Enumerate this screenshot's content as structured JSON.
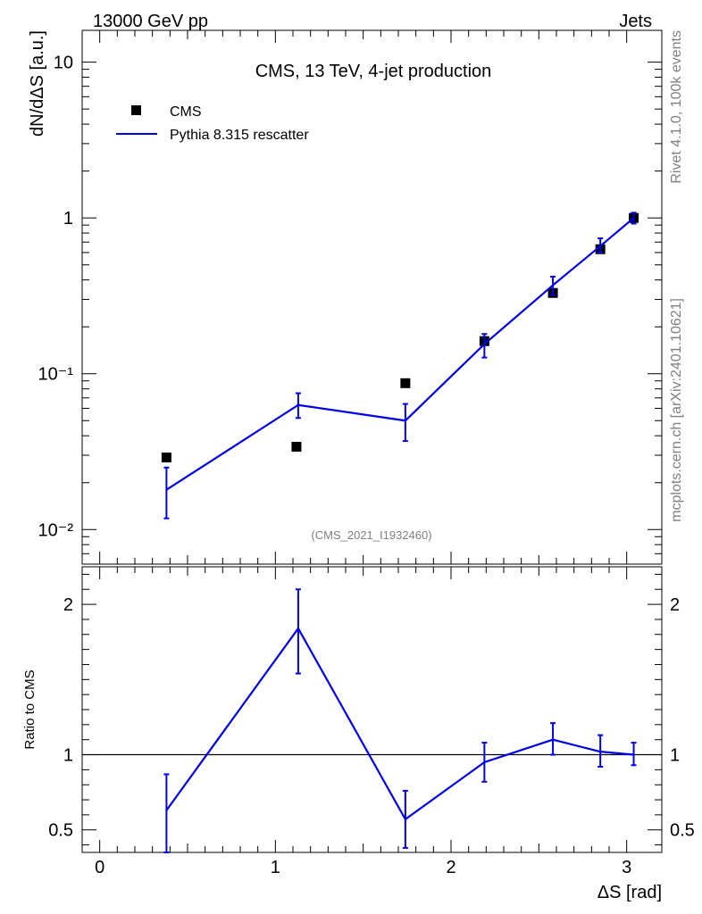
{
  "header": {
    "left": "13000 GeV pp",
    "right": "Jets"
  },
  "side_labels": {
    "top": "Rivet 4.1.0,  100k events",
    "bottom": "mcplots.cern.ch [arXiv:2401.10621]"
  },
  "chart_data": [
    {
      "type": "scatter",
      "title": "CMS, 13 TeV, 4-jet production",
      "ylabel": "dN/dΔS [a.u.]",
      "xlabel": "",
      "yscale": "log",
      "ylim": [
        0.006,
        16
      ],
      "xlim": [
        -0.1,
        3.2
      ],
      "analysis_id": "(CMS_2021_I1932460)",
      "ytick_labels": [
        "10⁻²",
        "10⁻¹",
        "1",
        "10"
      ],
      "series": [
        {
          "name": "CMS",
          "marker": "square",
          "color": "#000000",
          "x": [
            0.38,
            1.12,
            1.74,
            2.19,
            2.58,
            2.85,
            3.04
          ],
          "y": [
            0.029,
            0.034,
            0.087,
            0.162,
            0.33,
            0.63,
            1.0
          ]
        },
        {
          "name": "Pythia 8.315 rescatter",
          "marker": "line",
          "color": "#0000e6",
          "x": [
            0.38,
            1.13,
            1.74,
            2.19,
            2.58,
            2.85,
            3.04
          ],
          "y": [
            0.018,
            0.063,
            0.05,
            0.155,
            0.37,
            0.66,
            1.0
          ],
          "yerr_low": [
            0.0118,
            0.052,
            0.037,
            0.127,
            0.32,
            0.6,
            0.92
          ],
          "yerr_high": [
            0.025,
            0.075,
            0.064,
            0.18,
            0.42,
            0.74,
            1.08
          ]
        }
      ]
    },
    {
      "type": "line",
      "title": "",
      "ylabel": "Ratio to CMS",
      "xlabel": "ΔS [rad]",
      "ylim": [
        0.35,
        2.25
      ],
      "xlim": [
        -0.1,
        3.2
      ],
      "reference": 1.0,
      "ytick_labels": [
        "0.5",
        "1",
        "2"
      ],
      "xtick_labels": [
        "0",
        "1",
        "2",
        "3"
      ],
      "series": [
        {
          "name": "Pythia 8.315 rescatter",
          "color": "#0000e6",
          "x": [
            0.38,
            1.13,
            1.74,
            2.19,
            2.58,
            2.85,
            3.04
          ],
          "y": [
            0.63,
            1.84,
            0.57,
            0.95,
            1.1,
            1.02,
            1.0
          ],
          "yerr_low": [
            0.32,
            1.54,
            0.38,
            0.82,
            1.0,
            0.92,
            0.93
          ],
          "yerr_high": [
            0.87,
            2.1,
            0.76,
            1.08,
            1.21,
            1.13,
            1.08
          ]
        }
      ]
    }
  ]
}
